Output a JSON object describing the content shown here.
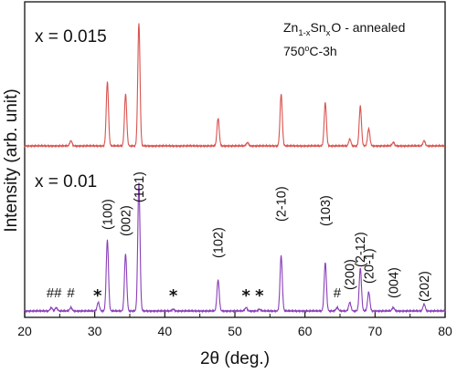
{
  "chart_data": {
    "type": "line",
    "title_main": "Zn",
    "title_sub1": "1-x",
    "title_mid": "Sn",
    "title_sub2": "x",
    "title_rest": "O - annealed",
    "title_line2_num": "750",
    "title_line2_deg": "o",
    "title_line2_rest": "C-3h",
    "xlabel": "2θ (deg.)",
    "ylabel": "Intensity (arb. unit)",
    "xlim": [
      20,
      80
    ],
    "x_ticks": [
      "20",
      "30",
      "40",
      "50",
      "60",
      "70",
      "80"
    ],
    "grid": false,
    "legend": "none",
    "series": [
      {
        "name": "x = 0.015",
        "color": "#d9534f",
        "baseline": 0.0,
        "peaks": [
          {
            "x": 26.6,
            "y": 0.03
          },
          {
            "x": 31.8,
            "y": 0.37
          },
          {
            "x": 34.4,
            "y": 0.3
          },
          {
            "x": 36.3,
            "y": 0.71
          },
          {
            "x": 47.6,
            "y": 0.16
          },
          {
            "x": 51.8,
            "y": 0.02
          },
          {
            "x": 56.6,
            "y": 0.3
          },
          {
            "x": 62.9,
            "y": 0.25
          },
          {
            "x": 66.4,
            "y": 0.04
          },
          {
            "x": 67.9,
            "y": 0.23
          },
          {
            "x": 69.1,
            "y": 0.1
          },
          {
            "x": 72.6,
            "y": 0.02
          },
          {
            "x": 77.0,
            "y": 0.03
          }
        ]
      },
      {
        "name": "x = 0.01",
        "color": "#8a3fb8",
        "baseline": 0.0,
        "peaks": [
          {
            "x": 23.8,
            "y": 0.02
          },
          {
            "x": 24.5,
            "y": 0.02
          },
          {
            "x": 26.6,
            "y": 0.02
          },
          {
            "x": 30.5,
            "y": 0.05
          },
          {
            "x": 31.8,
            "y": 0.41
          },
          {
            "x": 34.4,
            "y": 0.33
          },
          {
            "x": 36.3,
            "y": 0.74
          },
          {
            "x": 41.2,
            "y": 0.01
          },
          {
            "x": 47.6,
            "y": 0.18
          },
          {
            "x": 51.6,
            "y": 0.02
          },
          {
            "x": 53.5,
            "y": 0.01
          },
          {
            "x": 56.6,
            "y": 0.32
          },
          {
            "x": 62.9,
            "y": 0.28
          },
          {
            "x": 64.6,
            "y": 0.02
          },
          {
            "x": 66.4,
            "y": 0.05
          },
          {
            "x": 67.9,
            "y": 0.25
          },
          {
            "x": 69.1,
            "y": 0.11
          },
          {
            "x": 72.6,
            "y": 0.02
          },
          {
            "x": 77.0,
            "y": 0.04
          }
        ]
      }
    ],
    "annotations": [
      {
        "text": "(100)",
        "x": 31.8
      },
      {
        "text": "(002)",
        "x": 34.4
      },
      {
        "text": "(101)",
        "x": 36.3
      },
      {
        "text": "(102)",
        "x": 47.6
      },
      {
        "text": "(2-10)",
        "x": 56.6
      },
      {
        "text": "(103)",
        "x": 62.9
      },
      {
        "text": "(200)",
        "x": 66.4
      },
      {
        "text": "(2-12)",
        "x": 67.9
      },
      {
        "text": "(20-1)",
        "x": 69.1
      },
      {
        "text": "(004)",
        "x": 72.6
      },
      {
        "text": "(202)",
        "x": 77.0
      }
    ],
    "markers": [
      {
        "text": "##",
        "x": 24.2
      },
      {
        "text": "#",
        "x": 26.6
      },
      {
        "text": "*",
        "x": 30.4
      },
      {
        "text": "*",
        "x": 41.2
      },
      {
        "text": "*",
        "x": 51.6
      },
      {
        "text": "*",
        "x": 53.5
      },
      {
        "text": "#",
        "x": 64.6
      }
    ]
  }
}
